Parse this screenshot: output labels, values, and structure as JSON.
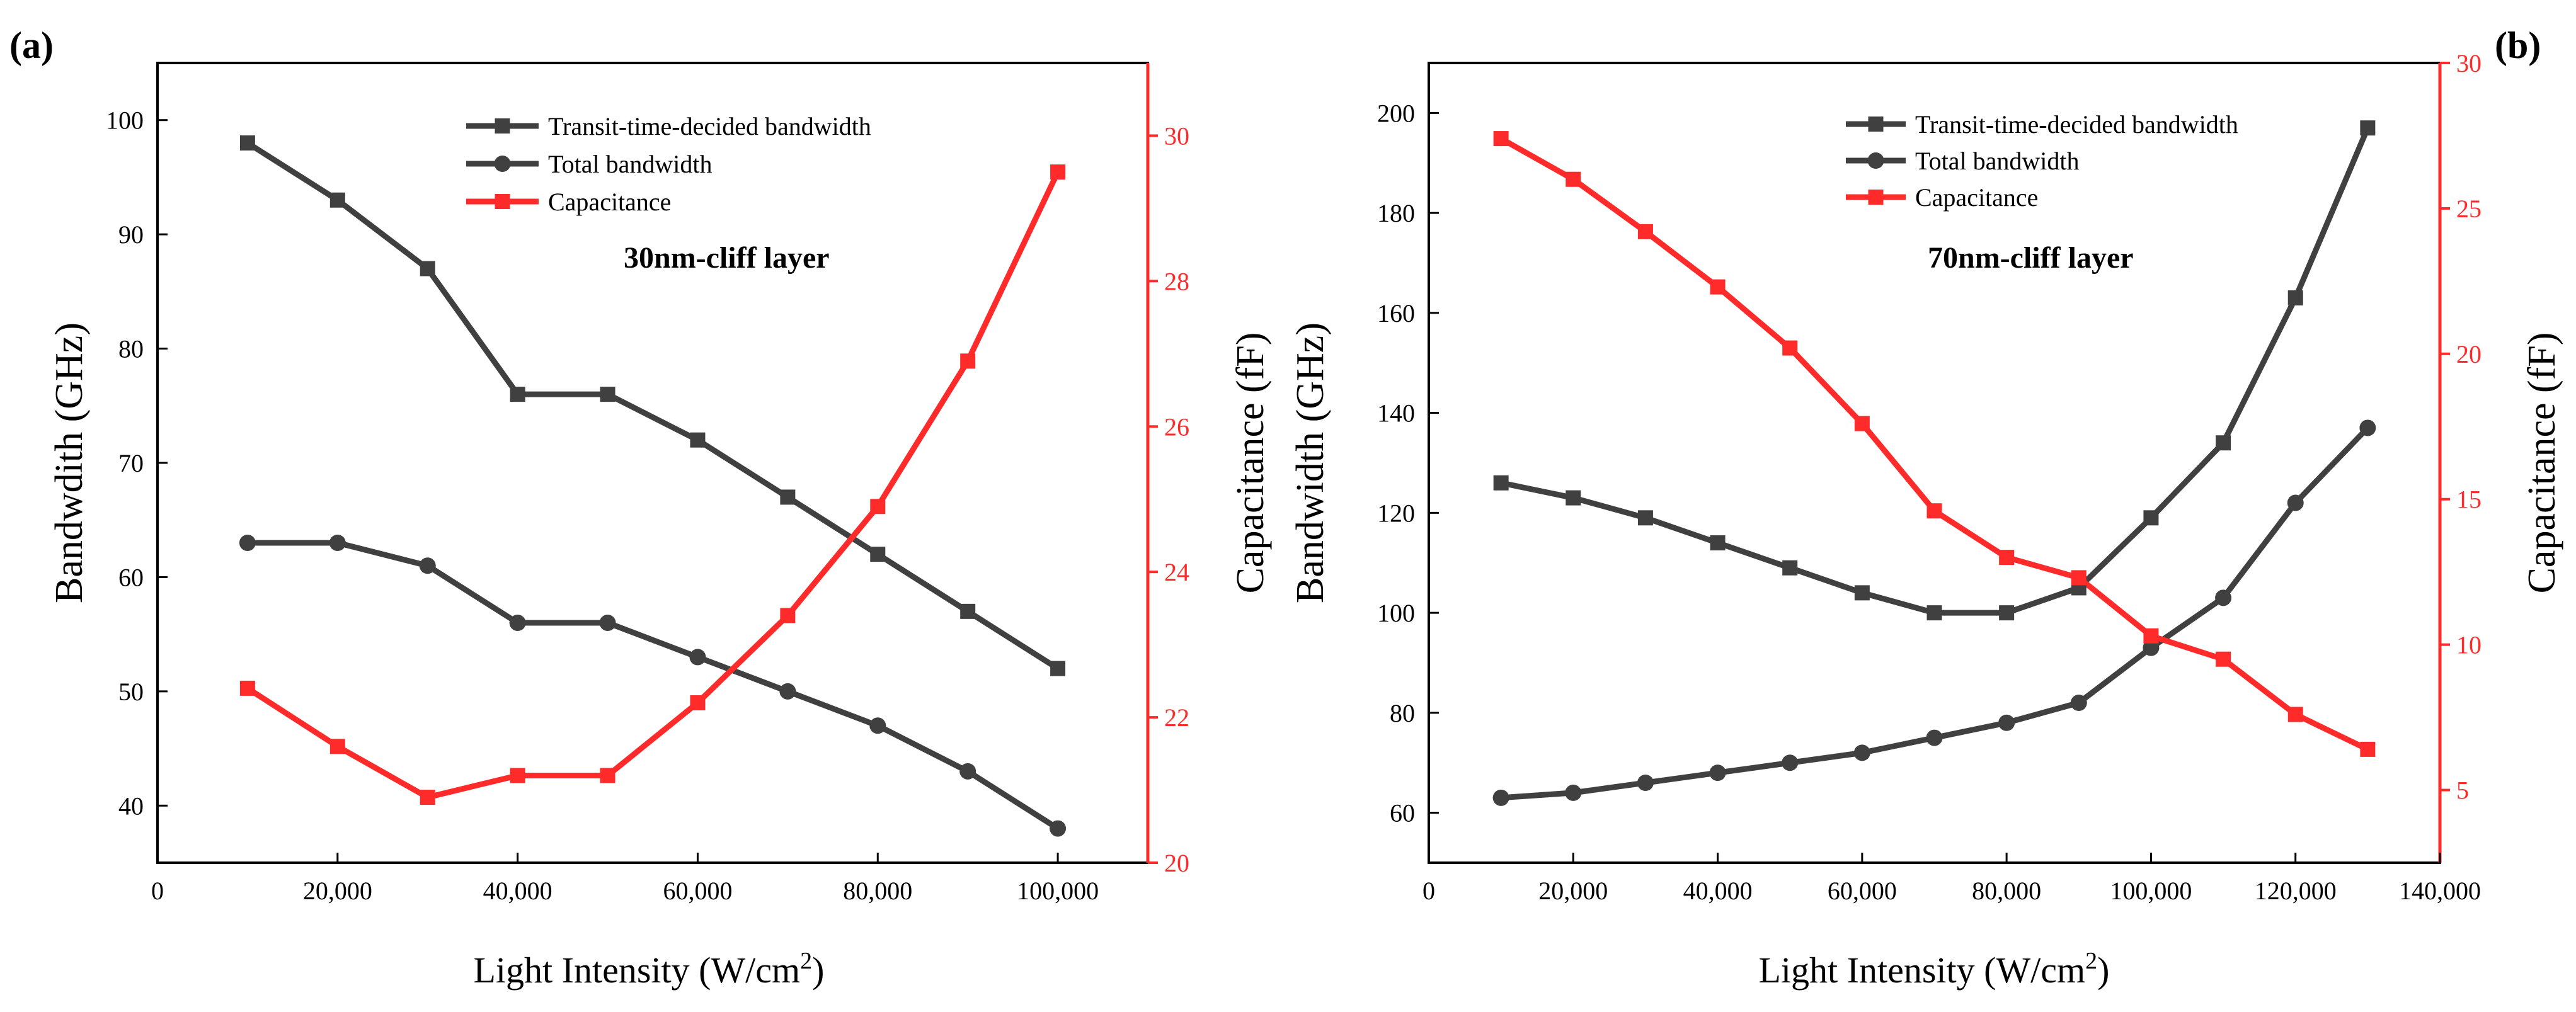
{
  "colors": {
    "series": "#404040",
    "capacitance": "#ff2a2a",
    "axis": "#000000",
    "background": "#ffffff"
  },
  "chart_data": [
    {
      "type": "line",
      "panel_label": "(a)",
      "annotation": "30nm-cliff layer",
      "xlabel_main": "Light Intensity (W/cm",
      "xlabel_sup": "2",
      "xlabel_end": ")",
      "ylabel_left": "Bandwdith (GHz)",
      "ylabel_right": "Capacitance (fF)",
      "xlim": [
        0,
        110000
      ],
      "ylim_left": [
        35,
        105
      ],
      "ylim_right": [
        20,
        31
      ],
      "x_ticks": [
        0,
        20000,
        40000,
        60000,
        80000,
        100000
      ],
      "x_tick_labels": [
        "0",
        "20,000",
        "40,000",
        "60,000",
        "80,000",
        "100,000"
      ],
      "y_left_ticks": [
        40,
        50,
        60,
        70,
        80,
        90,
        100
      ],
      "y_left_tick_labels": [
        "40",
        "50",
        "60",
        "70",
        "80",
        "90",
        "100"
      ],
      "y_right_ticks": [
        20,
        22,
        24,
        26,
        28,
        30
      ],
      "y_right_tick_labels": [
        "20",
        "22",
        "24",
        "26",
        "28",
        "30"
      ],
      "legend": [
        "Transit-time-decided bandwidth",
        "Total bandwidth",
        "Capacitance"
      ],
      "series": [
        {
          "name": "Transit-time-decided bandwidth",
          "axis": "left",
          "marker": "square",
          "color": "#404040",
          "x": [
            10000,
            20000,
            30000,
            40000,
            50000,
            60000,
            70000,
            80000,
            90000,
            100000
          ],
          "values": [
            98,
            93,
            87,
            76,
            76,
            72,
            67,
            62,
            57,
            52
          ]
        },
        {
          "name": "Total bandwidth",
          "axis": "left",
          "marker": "circle",
          "color": "#404040",
          "x": [
            10000,
            20000,
            30000,
            40000,
            50000,
            60000,
            70000,
            80000,
            90000,
            100000
          ],
          "values": [
            63,
            63,
            61,
            56,
            56,
            53,
            50,
            47,
            43,
            38
          ]
        },
        {
          "name": "Capacitance",
          "axis": "right",
          "marker": "square",
          "color": "#ff2a2a",
          "x": [
            10000,
            20000,
            30000,
            40000,
            50000,
            60000,
            70000,
            80000,
            90000,
            100000
          ],
          "values": [
            22.4,
            21.6,
            20.9,
            21.2,
            21.2,
            22.2,
            23.4,
            24.9,
            26.9,
            29.5
          ]
        }
      ]
    },
    {
      "type": "line",
      "panel_label": "(b)",
      "annotation": "70nm-cliff layer",
      "xlabel_main": "Light Intensity (W/cm",
      "xlabel_sup": "2",
      "xlabel_end": ")",
      "ylabel_left": "Bandwidth (GHz)",
      "ylabel_right": "Capacitance (fF)",
      "xlim": [
        0,
        140000
      ],
      "ylim_left": [
        50,
        210
      ],
      "ylim_right": [
        2.5,
        30
      ],
      "x_ticks": [
        0,
        20000,
        40000,
        60000,
        80000,
        100000,
        120000,
        140000
      ],
      "x_tick_labels": [
        "0",
        "20,000",
        "40,000",
        "60,000",
        "80,000",
        "100,000",
        "120,000",
        "140,000"
      ],
      "y_left_ticks": [
        60,
        80,
        100,
        120,
        140,
        160,
        180,
        200
      ],
      "y_left_tick_labels": [
        "60",
        "80",
        "100",
        "120",
        "140",
        "160",
        "180",
        "200"
      ],
      "y_right_ticks": [
        5,
        10,
        15,
        20,
        25,
        30
      ],
      "y_right_tick_labels": [
        "5",
        "10",
        "15",
        "20",
        "25",
        "30"
      ],
      "legend": [
        "Transit-time-decided bandwidth",
        "Total bandwidth",
        "Capacitance"
      ],
      "series": [
        {
          "name": "Transit-time-decided bandwidth",
          "axis": "left",
          "marker": "square",
          "color": "#404040",
          "x": [
            10000,
            20000,
            30000,
            40000,
            50000,
            60000,
            70000,
            80000,
            90000,
            100000,
            110000,
            120000,
            130000
          ],
          "values": [
            126,
            123,
            119,
            114,
            109,
            104,
            100,
            100,
            105,
            119,
            134,
            163,
            197
          ]
        },
        {
          "name": "Total bandwidth",
          "axis": "left",
          "marker": "circle",
          "color": "#404040",
          "x": [
            10000,
            20000,
            30000,
            40000,
            50000,
            60000,
            70000,
            80000,
            90000,
            100000,
            110000,
            120000,
            130000
          ],
          "values": [
            63,
            64,
            66,
            68,
            70,
            72,
            75,
            78,
            82,
            93,
            103,
            122,
            137
          ]
        },
        {
          "name": "Capacitance",
          "axis": "right",
          "marker": "square",
          "color": "#ff2a2a",
          "x": [
            10000,
            20000,
            30000,
            40000,
            50000,
            60000,
            70000,
            80000,
            90000,
            100000,
            110000,
            120000,
            130000
          ],
          "values": [
            27.4,
            26.0,
            24.2,
            22.3,
            20.2,
            17.6,
            14.6,
            13.0,
            12.3,
            10.3,
            9.5,
            7.6,
            6.4
          ]
        }
      ]
    }
  ]
}
